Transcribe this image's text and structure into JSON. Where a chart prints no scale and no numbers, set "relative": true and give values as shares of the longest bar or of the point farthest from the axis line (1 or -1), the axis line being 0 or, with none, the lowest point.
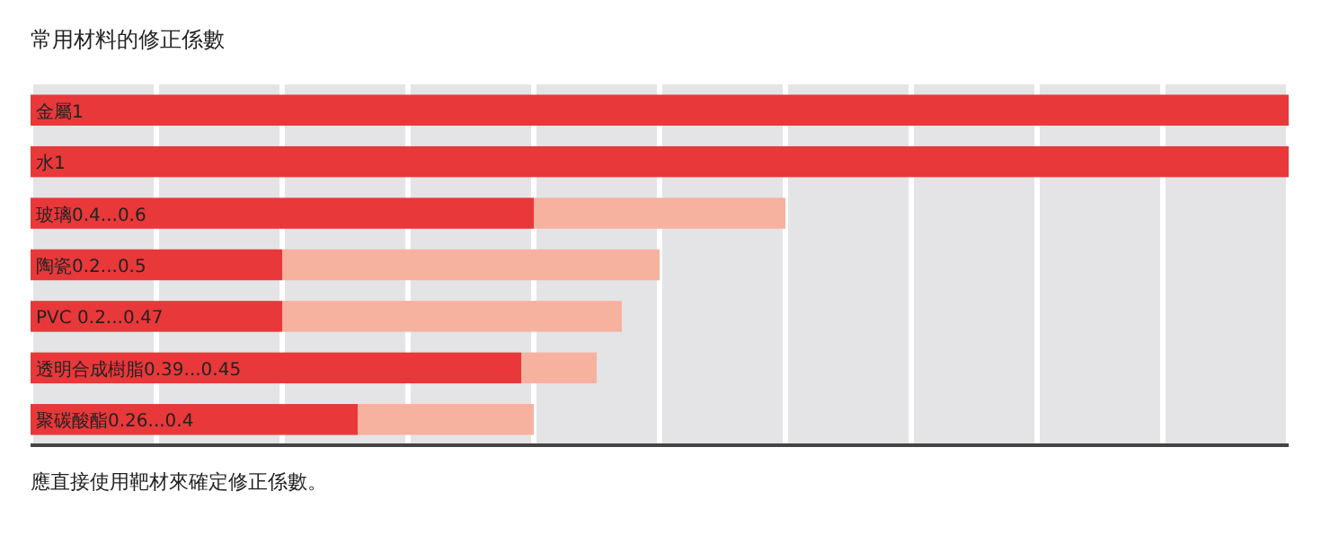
{
  "chart_data": {
    "type": "bar",
    "orientation": "horizontal",
    "stacked": true,
    "title": "常用材料的修正係數",
    "annotations": [
      "應直接使用靶材來確定修正係數。"
    ],
    "categories": [
      "金屬1",
      "水1",
      "玻璃0.4...0.6",
      "陶瓷0.2...0.5",
      "PVC 0.2...0.47",
      "透明合成樹脂0.39...0.45",
      "聚碳酸酯0.26...0.4"
    ],
    "series": [
      {
        "color": "#e8383a",
        "values": [
          1,
          1,
          0.4,
          0.2,
          0.2,
          0.39,
          0.26
        ]
      },
      {
        "color": "#f6b29e",
        "values": [
          null,
          null,
          0.2,
          0.3,
          0.27,
          0.06,
          0.14
        ]
      }
    ],
    "relative": true,
    "grid": "x"
  }
}
